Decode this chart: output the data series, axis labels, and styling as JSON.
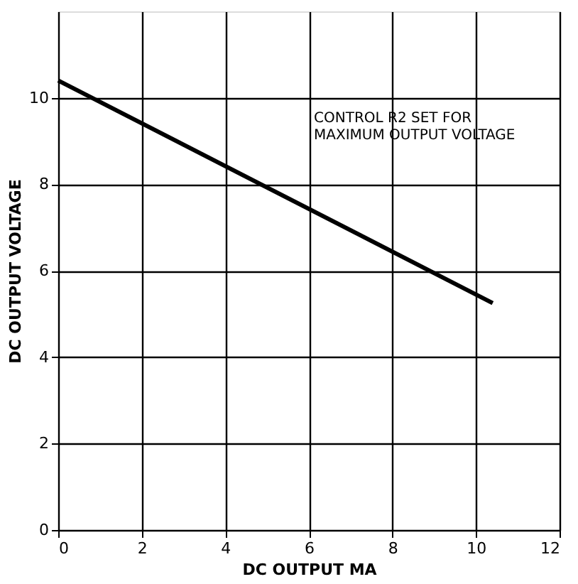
{
  "chart_data": {
    "type": "line",
    "xlabel": "DC OUTPUT MA",
    "ylabel": "DC OUTPUT VOLTAGE",
    "x": [
      0,
      10.4
    ],
    "series": [
      {
        "color": "#000000",
        "values": [
          10.4,
          5.25
        ]
      }
    ],
    "xlim": [
      0,
      12
    ],
    "xticks": [
      0,
      2,
      4,
      6,
      8,
      10,
      12
    ],
    "ylim": [
      0,
      12
    ],
    "yticks": [
      0,
      2,
      4,
      6,
      8,
      10
    ],
    "grid": true,
    "marker": "none",
    "line_style": "solid",
    "annotations": [
      "CONTROL R2 SET FOR\nMAXIMUM OUTPUT VOLTAGE"
    ]
  }
}
